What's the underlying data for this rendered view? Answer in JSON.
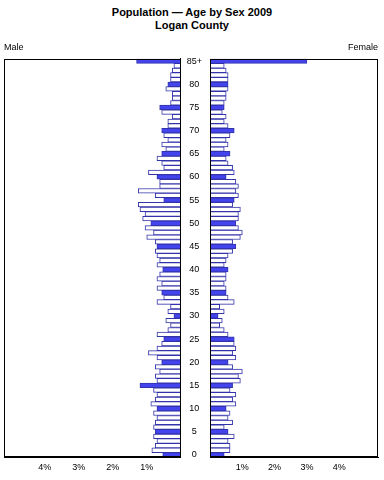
{
  "chart_data": {
    "type": "bar",
    "orientation": "horizontal",
    "title": "Population — Age by Sex 2009",
    "subtitle": "Logan County",
    "categories": [
      "0",
      null,
      null,
      null,
      null,
      "5",
      null,
      null,
      null,
      null,
      "10",
      null,
      null,
      null,
      null,
      "15",
      null,
      null,
      null,
      null,
      "20",
      null,
      null,
      null,
      null,
      "25",
      null,
      null,
      null,
      null,
      "30",
      null,
      null,
      null,
      null,
      "35",
      null,
      null,
      null,
      null,
      "40",
      null,
      null,
      null,
      null,
      "45",
      null,
      null,
      null,
      null,
      "50",
      null,
      null,
      null,
      null,
      "55",
      null,
      null,
      null,
      null,
      "60",
      null,
      null,
      null,
      null,
      "65",
      null,
      null,
      null,
      null,
      "70",
      null,
      null,
      null,
      null,
      "75",
      null,
      null,
      null,
      null,
      "80",
      null,
      null,
      null,
      null,
      "85+"
    ],
    "series": [
      {
        "name": "Male",
        "values": [
          0.53,
          0.85,
          0.75,
          0.7,
          0.8,
          0.75,
          0.8,
          0.75,
          0.7,
          0.8,
          0.7,
          0.88,
          0.75,
          0.7,
          0.8,
          1.2,
          0.7,
          0.75,
          0.62,
          0.75,
          0.56,
          0.7,
          0.95,
          0.7,
          0.56,
          0.5,
          0.7,
          0.38,
          0.3,
          0.44,
          0.2,
          0.38,
          0.3,
          0.7,
          0.5,
          0.56,
          0.7,
          0.56,
          0.7,
          0.62,
          0.53,
          0.7,
          0.62,
          0.7,
          0.75,
          0.7,
          0.75,
          1.0,
          0.8,
          1.05,
          0.88,
          1.12,
          1.05,
          1.2,
          1.25,
          0.5,
          0.75,
          1.25,
          0.62,
          0.62,
          0.7,
          0.95,
          0.5,
          0.56,
          0.7,
          0.56,
          0.44,
          0.56,
          0.38,
          0.5,
          0.56,
          0.38,
          0.38,
          0.25,
          0.56,
          0.62,
          0.3,
          0.25,
          0.25,
          0.44,
          0.38,
          0.3,
          0.3,
          0.25,
          0.2,
          1.3
        ],
        "colors": [
          "#4444ee",
          "#ffffff",
          "#ffffff",
          "#ffffff",
          "#ffffff",
          "#4444ee",
          "#ffffff",
          "#ffffff",
          "#ffffff",
          "#ffffff",
          "#4444ee",
          "#ffffff",
          "#ffffff",
          "#ffffff",
          "#ffffff",
          "#4444ee",
          "#ffffff",
          "#ffffff",
          "#ffffff",
          "#ffffff",
          "#4444ee",
          "#ffffff",
          "#ffffff",
          "#ffffff",
          "#ffffff",
          "#4444ee",
          "#ffffff",
          "#ffffff",
          "#ffffff",
          "#ffffff",
          "#4444ee",
          "#ffffff",
          "#ffffff",
          "#ffffff",
          "#ffffff",
          "#4444ee",
          "#ffffff",
          "#ffffff",
          "#ffffff",
          "#ffffff",
          "#4444ee",
          "#ffffff",
          "#ffffff",
          "#ffffff",
          "#ffffff",
          "#4444ee",
          "#ffffff",
          "#ffffff",
          "#ffffff",
          "#ffffff",
          "#4444ee",
          "#ffffff",
          "#ffffff",
          "#ffffff",
          "#ffffff",
          "#4444ee",
          "#ffffff",
          "#ffffff",
          "#ffffff",
          "#ffffff",
          "#4444ee",
          "#ffffff",
          "#ffffff",
          "#ffffff",
          "#ffffff",
          "#4444ee",
          "#ffffff",
          "#ffffff",
          "#ffffff",
          "#ffffff",
          "#4444ee",
          "#ffffff",
          "#ffffff",
          "#ffffff",
          "#ffffff",
          "#4444ee",
          "#ffffff",
          "#ffffff",
          "#ffffff",
          "#ffffff",
          "#4444ee",
          "#ffffff",
          "#ffffff",
          "#ffffff",
          "#ffffff",
          "#4444ee"
        ]
      },
      {
        "name": "Female",
        "values": [
          0.44,
          0.62,
          0.62,
          0.56,
          0.75,
          0.56,
          0.44,
          0.7,
          0.56,
          0.62,
          0.5,
          0.8,
          0.7,
          0.8,
          0.62,
          0.7,
          0.94,
          0.88,
          1.0,
          0.7,
          0.56,
          0.8,
          0.7,
          0.8,
          0.75,
          0.75,
          0.56,
          0.44,
          0.3,
          0.38,
          0.25,
          0.44,
          0.3,
          0.75,
          0.56,
          0.5,
          0.5,
          0.44,
          0.5,
          0.5,
          0.56,
          0.44,
          0.5,
          0.56,
          0.7,
          0.8,
          0.7,
          0.94,
          1.0,
          0.88,
          0.8,
          0.88,
          0.88,
          0.94,
          0.7,
          0.75,
          0.88,
          0.8,
          0.88,
          0.8,
          0.5,
          0.75,
          0.7,
          0.56,
          0.5,
          0.62,
          0.44,
          0.56,
          0.5,
          0.62,
          0.75,
          0.56,
          0.44,
          0.5,
          0.38,
          0.44,
          0.44,
          0.5,
          0.5,
          0.56,
          0.56,
          0.56,
          0.56,
          0.5,
          0.44,
          3.0
        ],
        "colors": [
          "#4444ee",
          "#ffffff",
          "#ffffff",
          "#ffffff",
          "#ffffff",
          "#4444ee",
          "#ffffff",
          "#ffffff",
          "#ffffff",
          "#ffffff",
          "#4444ee",
          "#ffffff",
          "#ffffff",
          "#ffffff",
          "#ffffff",
          "#4444ee",
          "#ffffff",
          "#ffffff",
          "#ffffff",
          "#ffffff",
          "#4444ee",
          "#ffffff",
          "#ffffff",
          "#ffffff",
          "#ffffff",
          "#4444ee",
          "#ffffff",
          "#ffffff",
          "#ffffff",
          "#ffffff",
          "#4444ee",
          "#ffffff",
          "#ffffff",
          "#ffffff",
          "#ffffff",
          "#4444ee",
          "#ffffff",
          "#ffffff",
          "#ffffff",
          "#ffffff",
          "#4444ee",
          "#ffffff",
          "#ffffff",
          "#ffffff",
          "#ffffff",
          "#4444ee",
          "#ffffff",
          "#ffffff",
          "#ffffff",
          "#ffffff",
          "#4444ee",
          "#ffffff",
          "#ffffff",
          "#ffffff",
          "#ffffff",
          "#4444ee",
          "#ffffff",
          "#ffffff",
          "#ffffff",
          "#ffffff",
          "#4444ee",
          "#ffffff",
          "#ffffff",
          "#ffffff",
          "#ffffff",
          "#4444ee",
          "#ffffff",
          "#ffffff",
          "#ffffff",
          "#ffffff",
          "#4444ee",
          "#ffffff",
          "#ffffff",
          "#ffffff",
          "#ffffff",
          "#4444ee",
          "#ffffff",
          "#ffffff",
          "#ffffff",
          "#ffffff",
          "#4444ee",
          "#ffffff",
          "#ffffff",
          "#ffffff",
          "#ffffff",
          "#4444ee"
        ]
      }
    ],
    "xlim": [
      0,
      5.2
    ],
    "xticks": [
      {
        "value": 1,
        "label": "1%"
      },
      {
        "value": 2,
        "label": "2%"
      },
      {
        "value": 3,
        "label": "3%"
      },
      {
        "value": 4,
        "label": "4%"
      }
    ],
    "grid": false
  }
}
